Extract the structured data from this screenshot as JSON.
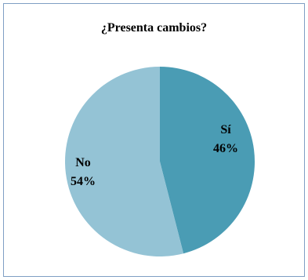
{
  "chart_data": {
    "type": "pie",
    "title": "¿Presenta cambios?",
    "slices": [
      {
        "name": "Sí",
        "value": 46,
        "label": "46%",
        "color": "#4a9cb4"
      },
      {
        "name": "No",
        "value": 54,
        "label": "54%",
        "color": "#94c3d5"
      }
    ]
  }
}
